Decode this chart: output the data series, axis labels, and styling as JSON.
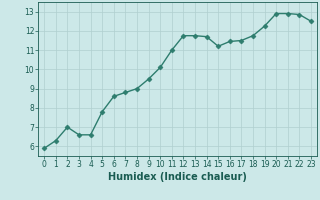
{
  "x": [
    0,
    1,
    2,
    3,
    4,
    5,
    6,
    7,
    8,
    9,
    10,
    11,
    12,
    13,
    14,
    15,
    16,
    17,
    18,
    19,
    20,
    21,
    22,
    23
  ],
  "y": [
    5.9,
    6.3,
    7.0,
    6.6,
    6.6,
    7.8,
    8.6,
    8.8,
    9.0,
    9.5,
    10.1,
    11.0,
    11.75,
    11.75,
    11.7,
    11.2,
    11.45,
    11.5,
    11.75,
    12.25,
    12.9,
    12.9,
    12.85,
    12.5
  ],
  "line_color": "#2e7d6e",
  "marker": "D",
  "markersize": 2.5,
  "linewidth": 1.0,
  "bg_color": "#cce8e8",
  "grid_color": "#b0cfcf",
  "xlabel": "Humidex (Indice chaleur)",
  "xlabel_fontsize": 7,
  "xlabel_color": "#1a5c52",
  "tick_color": "#1a5c52",
  "tick_labelsize": 5.5,
  "ylim": [
    5.5,
    13.5
  ],
  "xlim": [
    -0.5,
    23.5
  ],
  "yticks": [
    6,
    7,
    8,
    9,
    10,
    11,
    12,
    13
  ],
  "xticks": [
    0,
    1,
    2,
    3,
    4,
    5,
    6,
    7,
    8,
    9,
    10,
    11,
    12,
    13,
    14,
    15,
    16,
    17,
    18,
    19,
    20,
    21,
    22,
    23
  ]
}
